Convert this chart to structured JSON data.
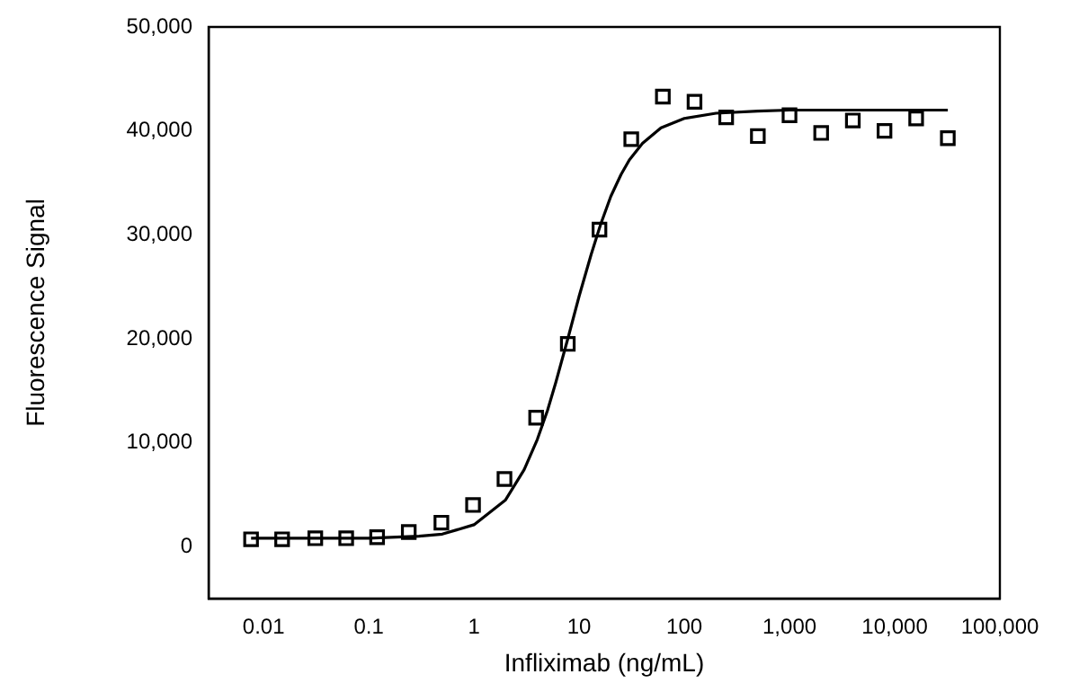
{
  "chart_data": {
    "type": "scatter",
    "xlabel": "Infliximab (ng/mL)",
    "ylabel": "Fluorescence Signal",
    "log": "x",
    "grid": false,
    "legend": false,
    "xlim": [
      0.003,
      100000
    ],
    "xticks": [
      0.01,
      0.1,
      1,
      10,
      100,
      {
        "value": 1000,
        "label": "1,000"
      },
      {
        "value": 10000,
        "label": "10,000"
      },
      {
        "value": 100000,
        "label": "100,000"
      }
    ],
    "ylim": [
      -5000,
      50000
    ],
    "yticks": [
      0,
      {
        "value": 10000,
        "label": "10,000"
      },
      {
        "value": 20000,
        "label": "20,000"
      },
      {
        "value": 30000,
        "label": "30,000"
      },
      {
        "value": 40000,
        "label": "40,000"
      },
      {
        "value": 50000,
        "label": "50,000"
      }
    ],
    "series": [
      {
        "marker": "square",
        "color": "#000000",
        "x": [
          0.0076,
          0.015,
          0.031,
          0.061,
          0.12,
          0.24,
          0.49,
          0.98,
          1.95,
          3.9,
          7.8,
          15.6,
          31.3,
          62.5,
          125,
          250,
          500,
          1000,
          2000,
          4000,
          8000,
          16000,
          32000
        ],
        "values": [
          700,
          700,
          800,
          800,
          900,
          1400,
          2300,
          4000,
          6500,
          12400,
          19500,
          30500,
          39200,
          43300,
          42800,
          41300,
          39500,
          41500,
          39800,
          41000,
          40000,
          41200,
          39300
        ]
      },
      {
        "type": "line",
        "marker": "none",
        "line_style": "solid",
        "color": "#000000",
        "x": [
          0.0076,
          0.01,
          0.03,
          0.1,
          0.3,
          0.5,
          1,
          2,
          3,
          4,
          5,
          6,
          8,
          10,
          13,
          16,
          20,
          25,
          30,
          40,
          60,
          100,
          200,
          500,
          1000,
          10000,
          32000
        ],
        "values": [
          800,
          800,
          800,
          800,
          1000,
          1200,
          2100,
          4500,
          7400,
          10300,
          13100,
          15800,
          20400,
          24100,
          28100,
          31000,
          33700,
          35800,
          37200,
          38800,
          40300,
          41200,
          41700,
          41900,
          42000,
          42000,
          42000
        ]
      }
    ]
  }
}
